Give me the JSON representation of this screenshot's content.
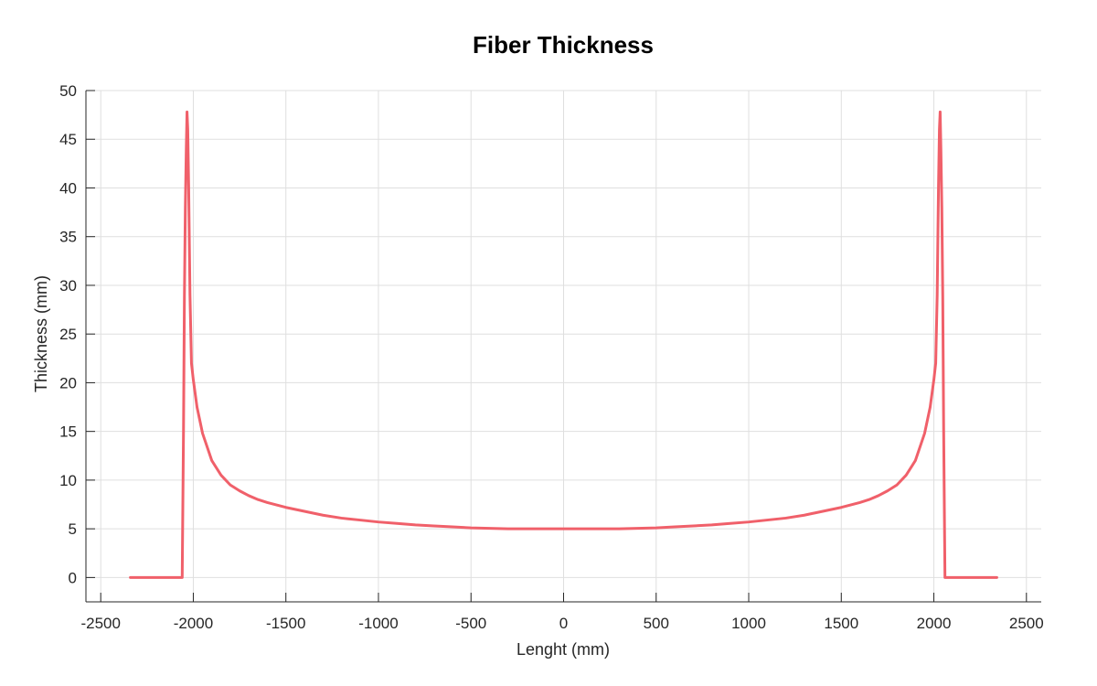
{
  "chart_data": {
    "type": "line",
    "title": "Fiber Thickness",
    "xlabel": "Lenght (mm)",
    "ylabel": "Thickness (mm)",
    "xlim": [
      -2580,
      2580
    ],
    "ylim": [
      -2.5,
      50
    ],
    "xticks": [
      -2500,
      -2000,
      -1500,
      -1000,
      -500,
      0,
      500,
      1000,
      1500,
      2000,
      2500
    ],
    "yticks": [
      0,
      5,
      10,
      15,
      20,
      25,
      30,
      35,
      40,
      45,
      50
    ],
    "grid": true,
    "line_color": "#f0606a",
    "series": [
      {
        "x": [
          -2340,
          -2060,
          -2053,
          -2048,
          -2043,
          -2038,
          -2034,
          -2030,
          -2025,
          -2018,
          -2010,
          -2000,
          -1980,
          -1950,
          -1900,
          -1850,
          -1800,
          -1750,
          -1700,
          -1650,
          -1600,
          -1500,
          -1400,
          -1300,
          -1200,
          -1100,
          -1000,
          -900,
          -800,
          -700,
          -600,
          -500,
          -400,
          -300,
          -200,
          -100,
          0,
          100,
          200,
          300,
          400,
          500,
          600,
          700,
          800,
          900,
          1000,
          1100,
          1200,
          1300,
          1400,
          1500,
          1600,
          1650,
          1700,
          1750,
          1800,
          1850,
          1900,
          1950,
          1980,
          2000,
          2010,
          2018,
          2025,
          2030,
          2034,
          2038,
          2043,
          2048,
          2053,
          2060,
          2340
        ],
        "y": [
          0,
          0,
          15,
          29,
          38,
          44,
          47.8,
          46,
          40,
          29,
          22,
          20.3,
          17.5,
          14.8,
          12,
          10.5,
          9.5,
          8.9,
          8.4,
          8.0,
          7.7,
          7.2,
          6.8,
          6.4,
          6.1,
          5.9,
          5.7,
          5.55,
          5.4,
          5.3,
          5.2,
          5.1,
          5.05,
          5.0,
          5.0,
          5.0,
          5.0,
          5.0,
          5.0,
          5.0,
          5.05,
          5.1,
          5.2,
          5.3,
          5.4,
          5.55,
          5.7,
          5.9,
          6.1,
          6.4,
          6.8,
          7.2,
          7.7,
          8.0,
          8.4,
          8.9,
          9.5,
          10.5,
          12,
          14.8,
          17.5,
          20.3,
          22,
          29,
          40,
          46,
          47.8,
          44,
          38,
          29,
          15,
          0,
          0
        ]
      }
    ]
  }
}
